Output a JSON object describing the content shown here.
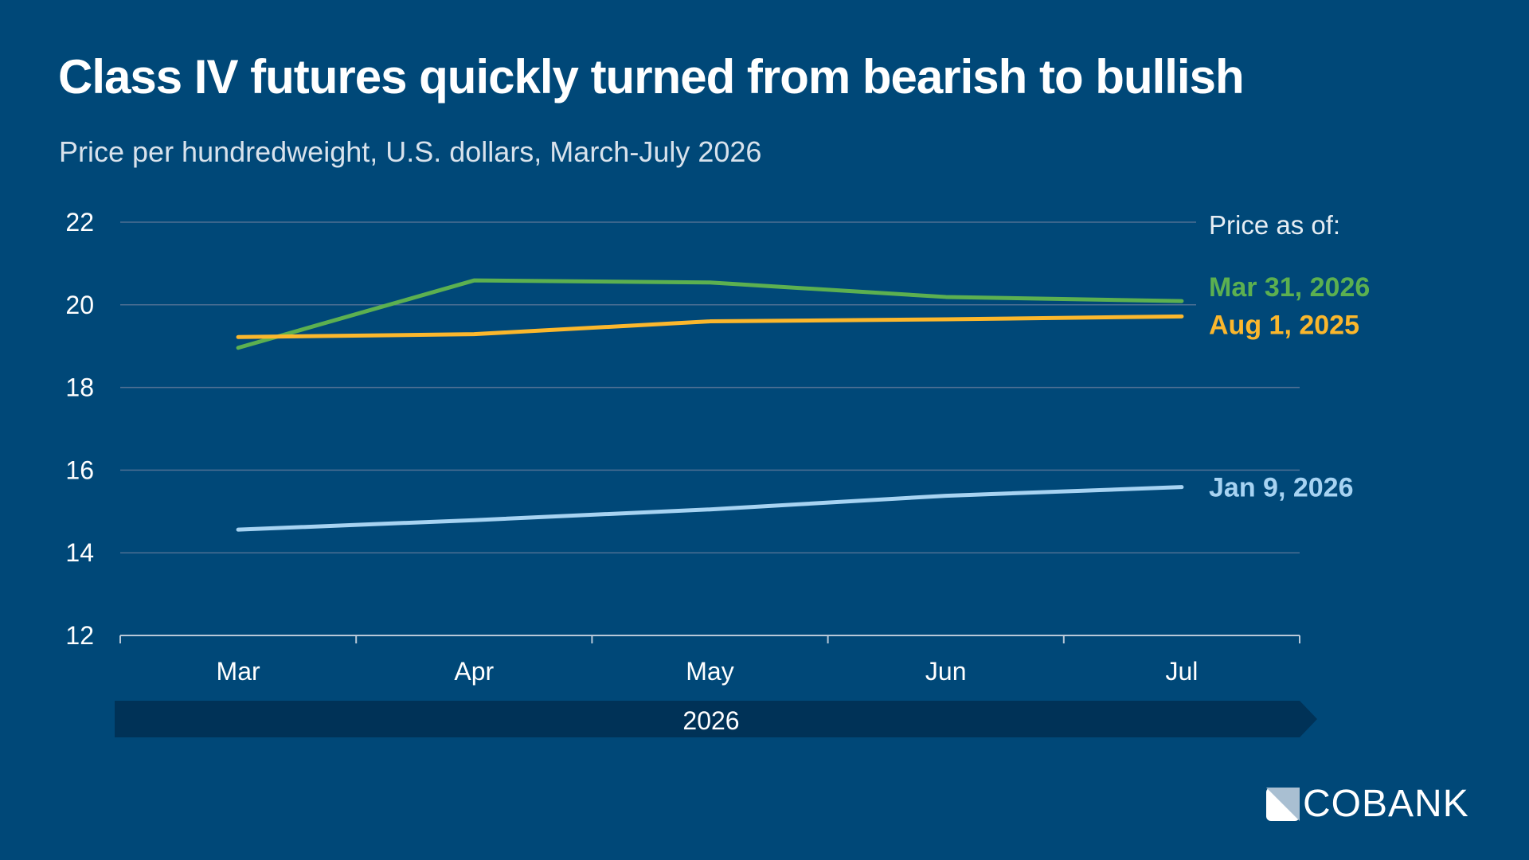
{
  "title": "Class IV futures quickly turned from bearish to bullish",
  "subtitle": "Price per hundredweight, U.S. dollars, March-July 2026",
  "brand": "COBANK",
  "colors": {
    "background": "#004878",
    "band": "#003257",
    "grid": "#4d6f93"
  },
  "chart_data": {
    "type": "line",
    "categories": [
      "Mar",
      "Apr",
      "May",
      "Jun",
      "Jul"
    ],
    "x_group_label": "2026",
    "yticks": [
      12,
      14,
      16,
      18,
      20,
      22
    ],
    "ylim": [
      12,
      22
    ],
    "grid": true,
    "legend_title": "Price as of:",
    "legend_placement": "right",
    "series": [
      {
        "name": "Mar 31, 2026",
        "color": "#5cb050",
        "values": [
          18.96,
          20.59,
          20.54,
          20.19,
          20.09
        ]
      },
      {
        "name": "Aug 1, 2025",
        "color": "#fbb72c",
        "values": [
          19.22,
          19.29,
          19.6,
          19.65,
          19.72
        ]
      },
      {
        "name": "Jan 9, 2026",
        "color": "#a7d3f2",
        "values": [
          14.56,
          14.79,
          15.05,
          15.38,
          15.59
        ]
      }
    ]
  }
}
